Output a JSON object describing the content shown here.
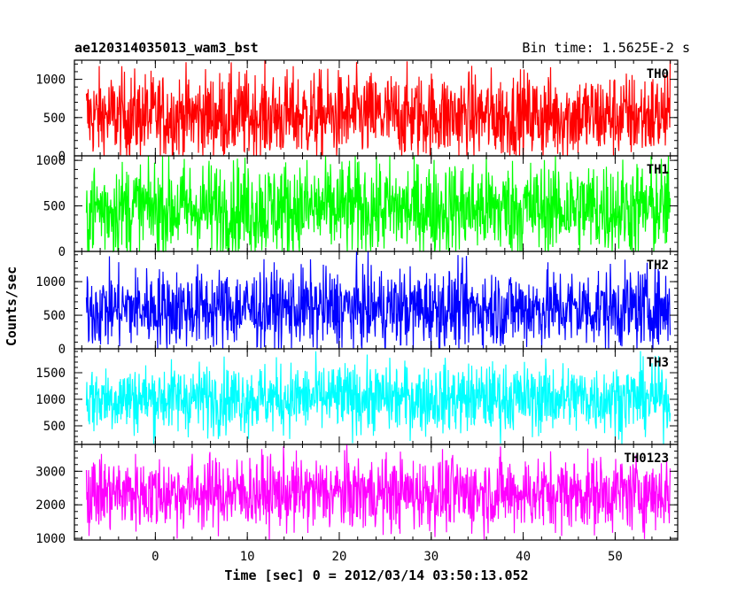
{
  "title_left": "ae120314035013_wam3_bst",
  "title_right": "Bin time: 1.5625E-2 s",
  "ylabel": "Counts/sec",
  "xlabel": "Time [sec] 0 = 2012/03/14 03:50:13.052",
  "chart_data": {
    "type": "line",
    "title": "ae120314035013_wam3_bst",
    "subtitle": "Bin time: 1.5625E-2 s",
    "xlabel": "Time [sec] 0 = 2012/03/14 03:50:13.052",
    "ylabel": "Counts/sec",
    "xlim": [
      -8.8,
      56.8
    ],
    "data_x_range": [
      -7.5,
      56.0
    ],
    "x_ticks": [
      0,
      10,
      20,
      30,
      40,
      50
    ],
    "bin_time_s": 0.015625,
    "panels": [
      {
        "name": "TH0",
        "color": "#ff0000",
        "ylim": [
          0,
          1250
        ],
        "y_ticks": [
          0,
          500,
          1000
        ],
        "mean": 520,
        "spread": 290,
        "min": 0,
        "max": 1250
      },
      {
        "name": "TH1",
        "color": "#00ff00",
        "ylim": [
          0,
          1050
        ],
        "y_ticks": [
          0,
          500,
          1000
        ],
        "mean": 470,
        "spread": 270,
        "min": 0,
        "max": 1050
      },
      {
        "name": "TH2",
        "color": "#0000ff",
        "ylim": [
          0,
          1450
        ],
        "y_ticks": [
          0,
          500,
          1000
        ],
        "mean": 600,
        "spread": 300,
        "min": 0,
        "max": 1450
      },
      {
        "name": "TH3",
        "color": "#00ffff",
        "ylim": [
          150,
          1950
        ],
        "y_ticks": [
          500,
          1000,
          1500
        ],
        "mean": 1020,
        "spread": 330,
        "min": 150,
        "max": 1950
      },
      {
        "name": "TH0123",
        "color": "#ff00ff",
        "ylim": [
          950,
          3800
        ],
        "y_ticks": [
          1000,
          2000,
          3000
        ],
        "mean": 2350,
        "spread": 560,
        "min": 950,
        "max": 3800
      }
    ]
  }
}
